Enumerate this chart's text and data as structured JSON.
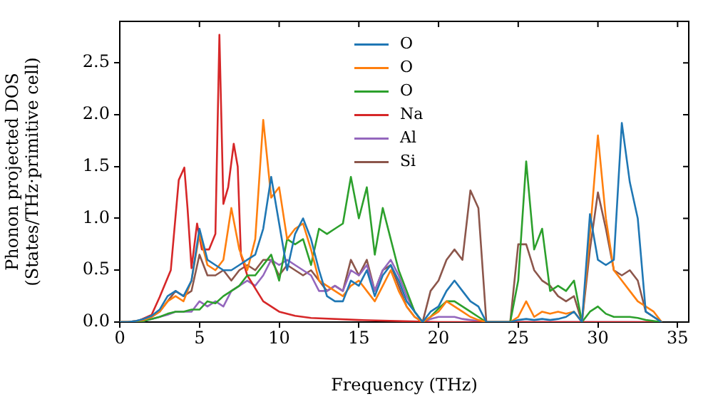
{
  "chart_data": {
    "type": "line",
    "xlabel": "Frequency (THz)",
    "ylabel": "Phonon projected DOS\n(States/THz·primitive cell)",
    "x": [
      0,
      0.5,
      1,
      1.5,
      2,
      2.5,
      3,
      3.5,
      4,
      4.5,
      5,
      5.5,
      6,
      6.5,
      7,
      7.5,
      8,
      8.5,
      9,
      9.5,
      10,
      10.5,
      11,
      11.5,
      12,
      12.5,
      13,
      13.5,
      14,
      14.5,
      15,
      15.5,
      16,
      16.5,
      17,
      17.5,
      18,
      18.5,
      19,
      19.5,
      20,
      20.5,
      21,
      21.5,
      22,
      22.5,
      23,
      23.5,
      24,
      24.5,
      25,
      25.5,
      26,
      26.5,
      27,
      27.5,
      28,
      28.5,
      29,
      29.5,
      30,
      30.5,
      31,
      31.5,
      32,
      32.5,
      33,
      33.5,
      34
    ],
    "xlim": [
      0,
      35.7
    ],
    "xticks": [
      0,
      5,
      10,
      15,
      20,
      25,
      30,
      35
    ],
    "ylim": [
      0,
      2.9
    ],
    "yticks": [
      {
        "value": 0,
        "label": "0.0"
      },
      {
        "value": 0.5,
        "label": "0.5"
      },
      {
        "value": 1,
        "label": "1.0"
      },
      {
        "value": 1.5,
        "label": "1.5"
      },
      {
        "value": 2,
        "label": "2.0"
      },
      {
        "value": 2.5,
        "label": "2.5"
      }
    ],
    "grid": false,
    "legend": "top",
    "marker": "none",
    "line_style": "solid",
    "series": [
      {
        "name": "O",
        "color": "#1f77b4",
        "values": [
          0,
          0,
          0.01,
          0.03,
          0.06,
          0.12,
          0.25,
          0.3,
          0.25,
          0.4,
          0.9,
          0.6,
          0.55,
          0.5,
          0.5,
          0.55,
          0.6,
          0.65,
          0.9,
          1.4,
          0.95,
          0.5,
          0.85,
          1.0,
          0.8,
          0.5,
          0.25,
          0.2,
          0.2,
          0.4,
          0.35,
          0.5,
          0.25,
          0.45,
          0.55,
          0.4,
          0.2,
          0.1,
          0,
          0.1,
          0.15,
          0.3,
          0.4,
          0.3,
          0.2,
          0.15,
          0,
          0,
          0,
          0,
          0.02,
          0.03,
          0.02,
          0.03,
          0.02,
          0.03,
          0.05,
          0.1,
          0,
          1.04,
          0.6,
          0.55,
          0.6,
          1.92,
          1.35,
          1.0,
          0.1,
          0.05,
          0
        ]
      },
      {
        "name": "O",
        "color": "#ff7f0e",
        "values": [
          0,
          0,
          0.01,
          0.02,
          0.05,
          0.1,
          0.2,
          0.25,
          0.2,
          0.4,
          0.85,
          0.55,
          0.5,
          0.6,
          1.1,
          0.7,
          0.5,
          0.8,
          1.95,
          1.2,
          1.3,
          0.8,
          0.9,
          0.95,
          0.7,
          0.4,
          0.35,
          0.3,
          0.25,
          0.35,
          0.4,
          0.3,
          0.2,
          0.35,
          0.5,
          0.3,
          0.15,
          0.05,
          0,
          0.05,
          0.1,
          0.2,
          0.15,
          0.1,
          0.05,
          0.02,
          0,
          0,
          0,
          0,
          0.05,
          0.2,
          0.05,
          0.1,
          0.08,
          0.1,
          0.08,
          0.1,
          0,
          0.85,
          1.8,
          1.0,
          0.5,
          0.4,
          0.3,
          0.2,
          0.15,
          0.1,
          0
        ]
      },
      {
        "name": "O",
        "color": "#2ca02c",
        "values": [
          0,
          0,
          0,
          0.01,
          0.03,
          0.05,
          0.08,
          0.1,
          0.1,
          0.12,
          0.12,
          0.2,
          0.18,
          0.25,
          0.3,
          0.35,
          0.45,
          0.45,
          0.55,
          0.65,
          0.4,
          0.8,
          0.75,
          0.8,
          0.55,
          0.9,
          0.85,
          0.9,
          0.95,
          1.4,
          1.0,
          1.3,
          0.65,
          1.1,
          0.8,
          0.5,
          0.3,
          0.1,
          0,
          0.05,
          0.13,
          0.2,
          0.2,
          0.15,
          0.1,
          0.05,
          0,
          0,
          0,
          0,
          0.4,
          1.55,
          0.7,
          0.9,
          0.3,
          0.35,
          0.3,
          0.4,
          0,
          0.1,
          0.15,
          0.08,
          0.05,
          0.05,
          0.05,
          0.04,
          0.02,
          0.01,
          0
        ]
      },
      {
        "name": "Na",
        "color": "#d62728",
        "x": [
          0,
          1,
          2,
          2.5,
          3.2,
          3.7,
          4.05,
          4.25,
          4.5,
          4.85,
          5.15,
          5.6,
          6.0,
          6.25,
          6.5,
          6.8,
          7.15,
          7.4,
          7.6,
          8,
          8.6,
          9,
          10,
          11,
          12,
          15,
          20,
          22,
          34
        ],
        "values": [
          0,
          0,
          0.07,
          0.24,
          0.5,
          1.37,
          1.49,
          1.1,
          0.52,
          0.95,
          0.7,
          0.7,
          0.85,
          2.77,
          1.14,
          1.3,
          1.72,
          1.5,
          0.65,
          0.45,
          0.3,
          0.2,
          0.1,
          0.06,
          0.04,
          0.02,
          0,
          0,
          0
        ]
      },
      {
        "name": "Al",
        "color": "#9467bd",
        "values": [
          0,
          0,
          0,
          0.01,
          0.03,
          0.05,
          0.07,
          0.1,
          0.1,
          0.1,
          0.2,
          0.15,
          0.2,
          0.15,
          0.3,
          0.35,
          0.4,
          0.35,
          0.45,
          0.6,
          0.55,
          0.6,
          0.55,
          0.5,
          0.45,
          0.3,
          0.3,
          0.35,
          0.3,
          0.5,
          0.45,
          0.55,
          0.3,
          0.5,
          0.6,
          0.45,
          0.25,
          0.1,
          0,
          0.03,
          0.05,
          0.05,
          0.05,
          0.03,
          0.02,
          0.01,
          0,
          0,
          0,
          0,
          0,
          0,
          0,
          0,
          0,
          0,
          0,
          0,
          0,
          0,
          0,
          0,
          0,
          0,
          0,
          0,
          0,
          0,
          0
        ]
      },
      {
        "name": "Si",
        "color": "#8c564b",
        "values": [
          0,
          0,
          0.01,
          0.02,
          0.05,
          0.1,
          0.2,
          0.3,
          0.25,
          0.3,
          0.65,
          0.45,
          0.45,
          0.5,
          0.4,
          0.5,
          0.55,
          0.5,
          0.6,
          0.6,
          0.45,
          0.55,
          0.5,
          0.45,
          0.5,
          0.4,
          0.3,
          0.35,
          0.3,
          0.6,
          0.45,
          0.6,
          0.3,
          0.5,
          0.55,
          0.35,
          0.15,
          0.05,
          0,
          0.3,
          0.4,
          0.6,
          0.7,
          0.6,
          1.27,
          1.1,
          0,
          0,
          0,
          0,
          0.75,
          0.75,
          0.5,
          0.4,
          0.35,
          0.25,
          0.2,
          0.25,
          0,
          0.7,
          1.25,
          0.9,
          0.5,
          0.45,
          0.5,
          0.4,
          0.1,
          0.05,
          0
        ]
      }
    ]
  }
}
